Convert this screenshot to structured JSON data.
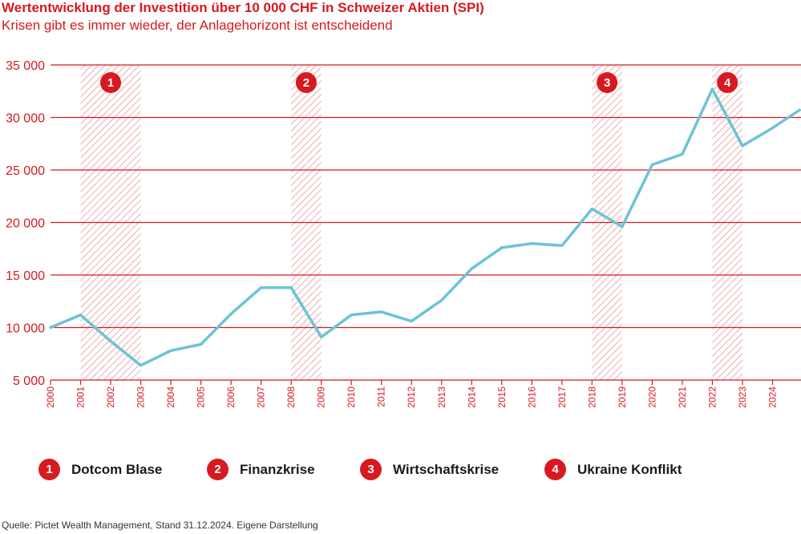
{
  "title": "Wertentwicklung der Investition über 10 000 CHF in Schweizer Aktien (SPI)",
  "subtitle": "Krisen gibt es immer wieder, der Anlagehorizont ist entscheidend",
  "source": "Quelle: Pictet Wealth Management, Stand 31.12.2024. Eigene Darstellung",
  "colors": {
    "accent": "#d71920",
    "line": "#6cc3d5"
  },
  "legend": [
    {
      "badge": "1",
      "label": "Dotcom Blase"
    },
    {
      "badge": "2",
      "label": "Finanzkrise"
    },
    {
      "badge": "3",
      "label": "Wirtschaftskrise"
    },
    {
      "badge": "4",
      "label": "Ukraine Konflikt"
    }
  ],
  "chart_data": {
    "type": "line",
    "x": [
      2000,
      2001,
      2002,
      2003,
      2004,
      2005,
      2006,
      2007,
      2008,
      2009,
      2010,
      2011,
      2012,
      2013,
      2014,
      2015,
      2016,
      2017,
      2018,
      2019,
      2020,
      2021,
      2022,
      2023,
      2024,
      2024.9
    ],
    "y": [
      10000,
      11200,
      8700,
      6400,
      7800,
      8400,
      11300,
      13800,
      13800,
      9100,
      11200,
      11500,
      10600,
      12600,
      15600,
      17600,
      18000,
      17800,
      21300,
      19600,
      25500,
      26500,
      32700,
      27300,
      29000,
      30700
    ],
    "xlim": [
      2000,
      2025
    ],
    "ylim": [
      5000,
      35000
    ],
    "xticks": [
      "2000",
      "2001",
      "2002",
      "2003",
      "2004",
      "2005",
      "2006",
      "2007",
      "2008",
      "2009",
      "2010",
      "2011",
      "2012",
      "2013",
      "2014",
      "2015",
      "2016",
      "2017",
      "2018",
      "2019",
      "2020",
      "2021",
      "2022",
      "2023",
      "2024"
    ],
    "yticks": [
      {
        "value": 5000,
        "label": "5 000"
      },
      {
        "value": 10000,
        "label": "10 000"
      },
      {
        "value": 15000,
        "label": "15 000"
      },
      {
        "value": 20000,
        "label": "20 000"
      },
      {
        "value": 25000,
        "label": "25 000"
      },
      {
        "value": 30000,
        "label": "30 000"
      },
      {
        "value": 35000,
        "label": "35 000"
      }
    ],
    "grid": true,
    "crises": [
      {
        "badge": "1",
        "start": 2001,
        "end": 2003
      },
      {
        "badge": "2",
        "start": 2008,
        "end": 2009
      },
      {
        "badge": "3",
        "start": 2018,
        "end": 2019
      },
      {
        "badge": "4",
        "start": 2022,
        "end": 2023
      }
    ]
  }
}
